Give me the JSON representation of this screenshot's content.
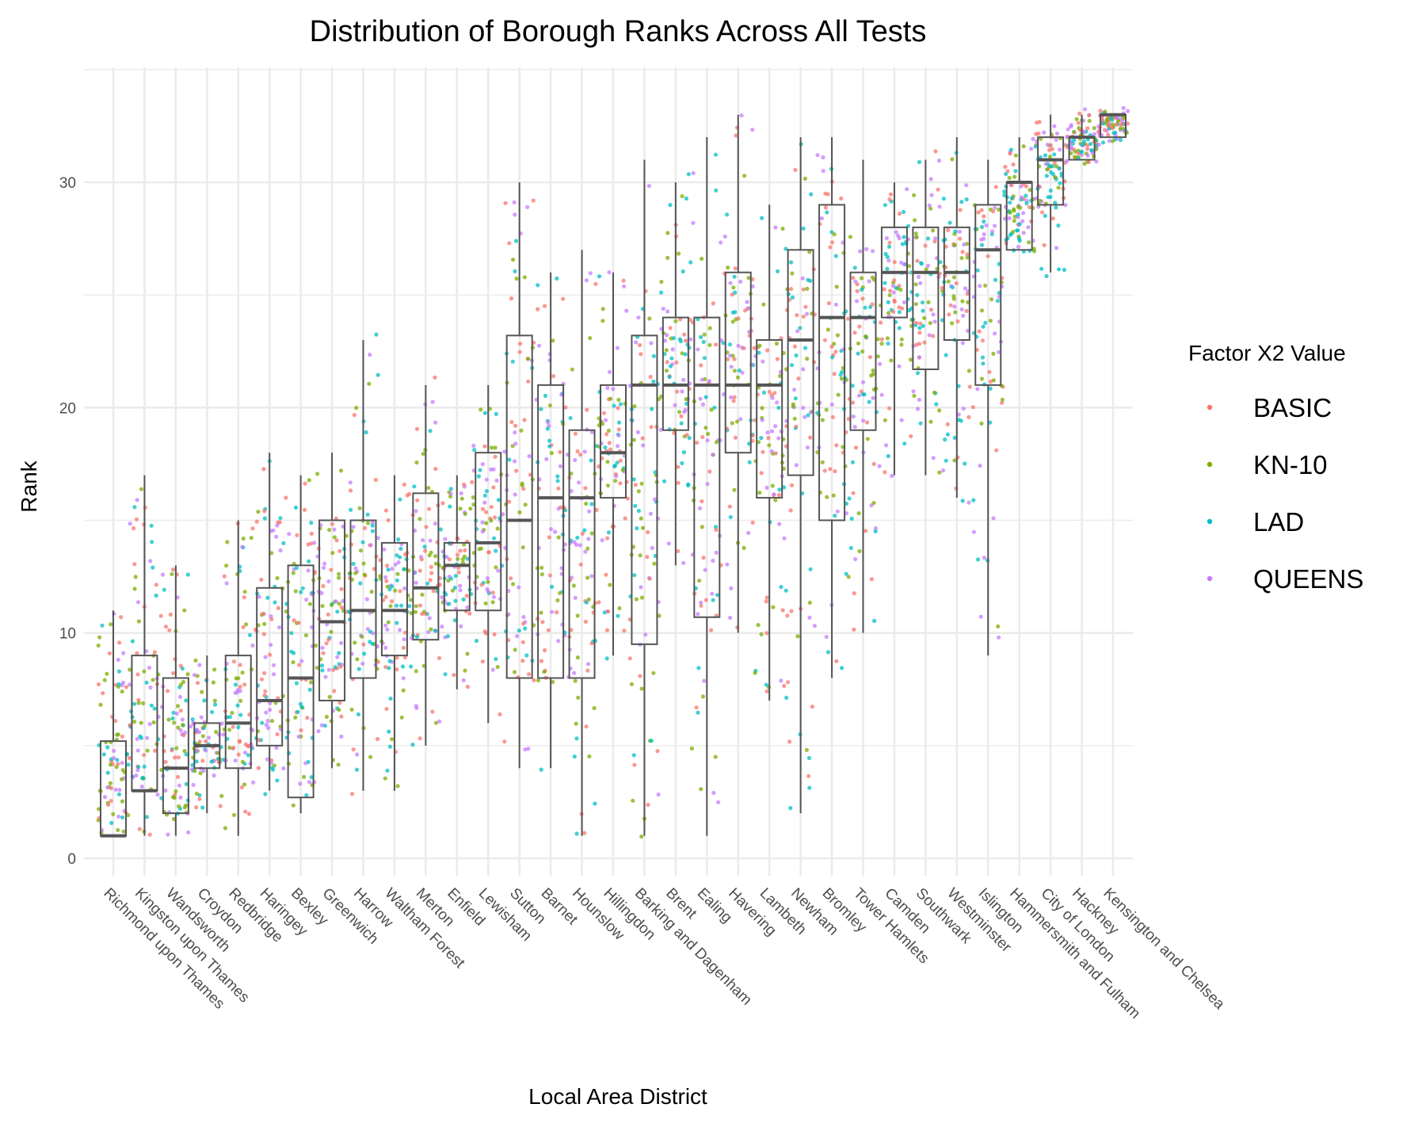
{
  "chart_data": {
    "type": "boxplot",
    "title": "Distribution of Borough Ranks Across All Tests",
    "xlabel": "Local Area District",
    "ylabel": "Rank",
    "ylim": [
      -0.8,
      35.5
    ],
    "yticks": [
      0,
      10,
      20,
      30
    ],
    "grid": true,
    "legend_position": "right",
    "legend": {
      "title": "Factor X2 Value",
      "entries": [
        {
          "name": "BASIC",
          "color": "#F8766D"
        },
        {
          "name": "KN-10",
          "color": "#7CAE00"
        },
        {
          "name": "LAD",
          "color": "#00BFC4"
        },
        {
          "name": "QUEENS",
          "color": "#C77CFF"
        }
      ]
    },
    "categories": [
      "Richmond upon Thames",
      "Kingston upon Thames",
      "Wandsworth",
      "Croydon",
      "Redbridge",
      "Haringey",
      "Bexley",
      "Greenwich",
      "Harrow",
      "Waltham Forest",
      "Merton",
      "Enfield",
      "Lewisham",
      "Sutton",
      "Barnet",
      "Hounslow",
      "Hillingdon",
      "Barking and Dagenham",
      "Brent",
      "Ealing",
      "Havering",
      "Lambeth",
      "Newham",
      "Bromley",
      "Tower Hamlets",
      "Camden",
      "Southwark",
      "Westminster",
      "Islington",
      "Hammersmith and Fulham",
      "City of London",
      "Hackney",
      "Kensington and Chelsea"
    ],
    "boxes": [
      {
        "whisker_low": 1,
        "q1": 1,
        "median": 1,
        "q3": 5.2,
        "whisker_high": 11
      },
      {
        "whisker_low": 1,
        "q1": 3,
        "median": 3,
        "q3": 9,
        "whisker_high": 17
      },
      {
        "whisker_low": 1,
        "q1": 2,
        "median": 4,
        "q3": 8,
        "whisker_high": 13
      },
      {
        "whisker_low": 2,
        "q1": 4,
        "median": 5,
        "q3": 6,
        "whisker_high": 9
      },
      {
        "whisker_low": 1,
        "q1": 4,
        "median": 6,
        "q3": 9,
        "whisker_high": 15
      },
      {
        "whisker_low": 3,
        "q1": 5,
        "median": 7,
        "q3": 12,
        "whisker_high": 18
      },
      {
        "whisker_low": 2,
        "q1": 2.7,
        "median": 8,
        "q3": 13,
        "whisker_high": 17
      },
      {
        "whisker_low": 4,
        "q1": 7,
        "median": 10.5,
        "q3": 15,
        "whisker_high": 18
      },
      {
        "whisker_low": 3,
        "q1": 8,
        "median": 11,
        "q3": 15,
        "whisker_high": 23
      },
      {
        "whisker_low": 3,
        "q1": 9,
        "median": 11,
        "q3": 14,
        "whisker_high": 17
      },
      {
        "whisker_low": 5,
        "q1": 9.7,
        "median": 12,
        "q3": 16.2,
        "whisker_high": 21
      },
      {
        "whisker_low": 7.5,
        "q1": 11,
        "median": 13,
        "q3": 14,
        "whisker_high": 17
      },
      {
        "whisker_low": 6,
        "q1": 11,
        "median": 14,
        "q3": 18,
        "whisker_high": 21
      },
      {
        "whisker_low": 4,
        "q1": 8,
        "median": 15,
        "q3": 23.2,
        "whisker_high": 30
      },
      {
        "whisker_low": 4,
        "q1": 8,
        "median": 16,
        "q3": 21,
        "whisker_high": 26
      },
      {
        "whisker_low": 1,
        "q1": 8,
        "median": 16,
        "q3": 19,
        "whisker_high": 27
      },
      {
        "whisker_low": 9,
        "q1": 16,
        "median": 18,
        "q3": 21,
        "whisker_high": 26
      },
      {
        "whisker_low": 1,
        "q1": 9.5,
        "median": 21,
        "q3": 23.2,
        "whisker_high": 31
      },
      {
        "whisker_low": 13,
        "q1": 19,
        "median": 21,
        "q3": 24,
        "whisker_high": 30
      },
      {
        "whisker_low": 1,
        "q1": 10.7,
        "median": 21,
        "q3": 24,
        "whisker_high": 32
      },
      {
        "whisker_low": 10,
        "q1": 18,
        "median": 21,
        "q3": 26,
        "whisker_high": 33
      },
      {
        "whisker_low": 7,
        "q1": 16,
        "median": 21,
        "q3": 23,
        "whisker_high": 29
      },
      {
        "whisker_low": 2,
        "q1": 17,
        "median": 23,
        "q3": 27,
        "whisker_high": 32
      },
      {
        "whisker_low": 8,
        "q1": 15,
        "median": 24,
        "q3": 29,
        "whisker_high": 32
      },
      {
        "whisker_low": 10,
        "q1": 19,
        "median": 24,
        "q3": 26,
        "whisker_high": 31
      },
      {
        "whisker_low": 17,
        "q1": 24,
        "median": 26,
        "q3": 28,
        "whisker_high": 30
      },
      {
        "whisker_low": 17,
        "q1": 21.7,
        "median": 26,
        "q3": 28,
        "whisker_high": 31
      },
      {
        "whisker_low": 16,
        "q1": 23,
        "median": 26,
        "q3": 28,
        "whisker_high": 32
      },
      {
        "whisker_low": 9,
        "q1": 21,
        "median": 27,
        "q3": 29,
        "whisker_high": 31
      },
      {
        "whisker_low": 27,
        "q1": 27,
        "median": 30,
        "q3": 30,
        "whisker_high": 32
      },
      {
        "whisker_low": 26,
        "q1": 29,
        "median": 31,
        "q3": 32,
        "whisker_high": 33
      },
      {
        "whisker_low": 31,
        "q1": 31,
        "median": 32,
        "q3": 32,
        "whisker_high": 33
      },
      {
        "whisker_low": 32,
        "q1": 32,
        "median": 33,
        "q3": 33,
        "whisker_high": 33
      }
    ]
  }
}
